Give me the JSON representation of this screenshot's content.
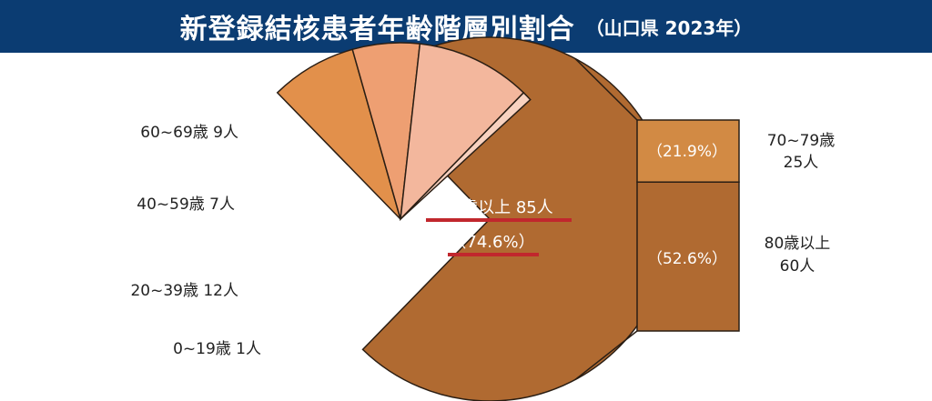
{
  "header": {
    "title": "新登録結核患者年齢階層別割合",
    "subtitle": "（山口県 2023年）"
  },
  "chart_data": {
    "type": "pie",
    "title": "新登録結核患者年齢階層別割合",
    "subtitle": "（山口県 2023年）",
    "slices": [
      {
        "label": "60~69歳 9人",
        "value": 9,
        "color": "#e2904b",
        "exploded": true
      },
      {
        "label": "40~59歳 7人",
        "value": 7,
        "color": "#ee9f72",
        "exploded": true
      },
      {
        "label": "20~39歳 12人",
        "value": 12,
        "color": "#f3b79d",
        "exploded": true
      },
      {
        "label": "0~19歳 1人",
        "value": 1,
        "color": "#f8d2c0",
        "exploded": true
      },
      {
        "label": "70歳以上 85人",
        "value": 85,
        "color": "#b06a31",
        "exploded": false,
        "percent_label": "（74.6%）"
      }
    ],
    "breakdown": {
      "of": "70歳以上 85人",
      "segments": [
        {
          "label_line1": "70~79歳",
          "label_line2": "25人",
          "value": 25,
          "percent_label": "（21.9%）",
          "color": "#d28a44"
        },
        {
          "label_line1": "80歳以上",
          "label_line2": "60人",
          "value": 60,
          "percent_label": "（52.6%）",
          "color": "#b06a31"
        }
      ]
    },
    "colors": {
      "underline": "#c1272d",
      "header_bg": "#0b3c72",
      "outline": "#2a1e14"
    }
  }
}
